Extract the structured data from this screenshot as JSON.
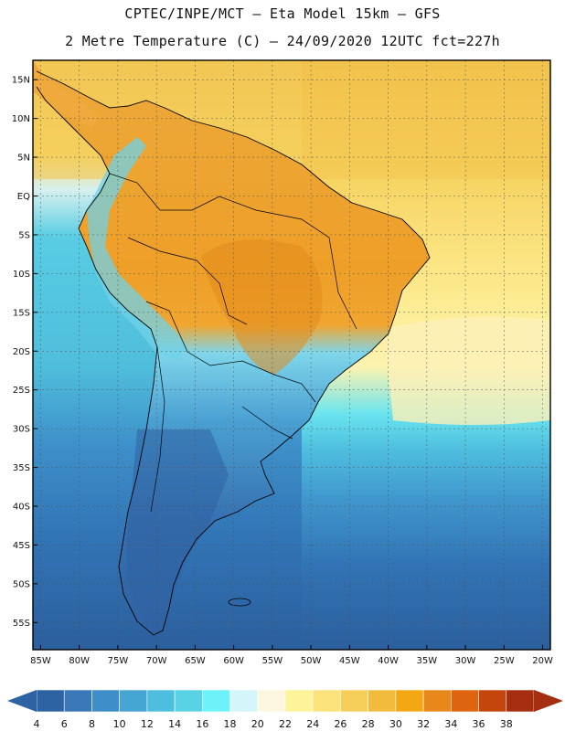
{
  "header": {
    "line1": "CPTEC/INPE/MCT –  Eta Model 15km – GFS",
    "line2": "2 Metre Temperature (C) – 24/09/2020 12UTC fct=227h"
  },
  "map": {
    "lat_labels": [
      "15N",
      "10N",
      "5N",
      "EQ",
      "5S",
      "10S",
      "15S",
      "20S",
      "25S",
      "30S",
      "35S",
      "40S",
      "45S",
      "50S",
      "55S"
    ],
    "lat_values": [
      15,
      10,
      5,
      0,
      -5,
      -10,
      -15,
      -20,
      -25,
      -30,
      -35,
      -40,
      -45,
      -50,
      -55
    ],
    "lon_labels": [
      "85W",
      "80W",
      "75W",
      "70W",
      "65W",
      "60W",
      "55W",
      "50W",
      "45W",
      "40W",
      "35W",
      "30W",
      "25W",
      "20W"
    ],
    "lon_values": [
      -85,
      -80,
      -75,
      -70,
      -65,
      -60,
      -55,
      -50,
      -45,
      -40,
      -35,
      -30,
      -25,
      -20
    ],
    "lon_range": [
      -86,
      -19
    ],
    "lat_range": [
      -58.5,
      17.5
    ]
  },
  "colorbar": {
    "labels": [
      "4",
      "6",
      "8",
      "10",
      "12",
      "14",
      "16",
      "18",
      "20",
      "22",
      "24",
      "26",
      "28",
      "30",
      "32",
      "34",
      "36",
      "38"
    ],
    "colors": [
      "#2e63a3",
      "#3a78b8",
      "#3d8ec9",
      "#45a6d4",
      "#4ebedf",
      "#5ad2e6",
      "#6ef2fa",
      "#d4f5f9",
      "#fdf7e0",
      "#fdf39a",
      "#fbe27a",
      "#f6cf5a",
      "#f1bc3c",
      "#f3a712",
      "#e8871a",
      "#df6410",
      "#c4460c",
      "#a52d10"
    ]
  }
}
